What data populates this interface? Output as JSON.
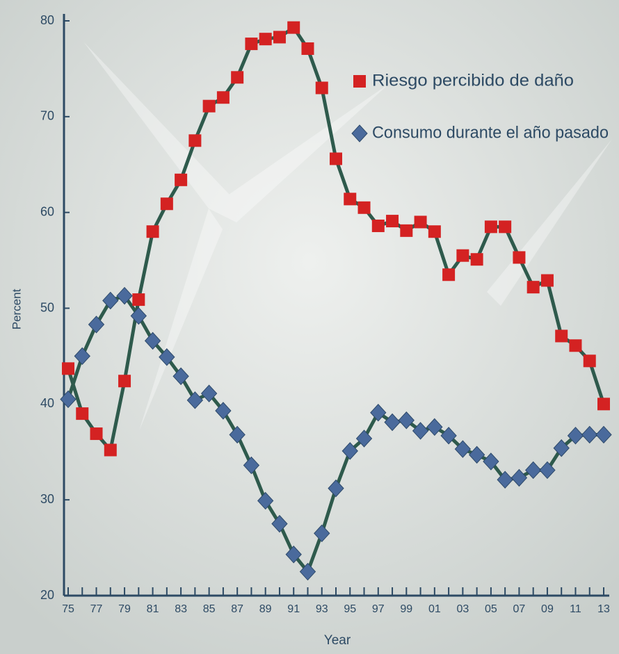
{
  "chart_data": {
    "type": "line",
    "x_label": "Year",
    "y_label": "Percent",
    "categories": [
      "75",
      null,
      "77",
      null,
      "79",
      null,
      "81",
      null,
      "83",
      null,
      "85",
      null,
      "87",
      null,
      "89",
      null,
      "91",
      null,
      "93",
      null,
      "95",
      null,
      "97",
      null,
      "99",
      null,
      "01",
      null,
      "03",
      null,
      "05",
      null,
      "07",
      null,
      "09",
      null,
      "11",
      null,
      "13"
    ],
    "series": [
      {
        "name": "Riesgo percibido de daño",
        "color": "#d42222",
        "marker": "square",
        "values": [
          43.7,
          39,
          36.9,
          35.2,
          42.4,
          50.9,
          58,
          60.9,
          63.4,
          67.5,
          71.1,
          72,
          74.1,
          77.6,
          78.1,
          78.3,
          79.3,
          77.1,
          73,
          65.6,
          61.4,
          60.5,
          58.6,
          59.1,
          58.1,
          59,
          58,
          53.5,
          55.5,
          55.1,
          58.5,
          58.5,
          55.3,
          52.2,
          52.9,
          47.1,
          46.1,
          44.5,
          40
        ]
      },
      {
        "name": "Consumo durante el año pasado",
        "color": "#4a6a9c",
        "marker": "diamond",
        "values": [
          40.5,
          45,
          48.3,
          50.8,
          51.3,
          49.2,
          46.6,
          44.9,
          42.9,
          40.4,
          41.1,
          39.3,
          36.8,
          33.6,
          29.9,
          27.5,
          24.3,
          22.5,
          26.5,
          31.2,
          35.1,
          36.4,
          39.1,
          38.1,
          38.3,
          37.2,
          37.6,
          36.7,
          35.3,
          34.7,
          34,
          32.1,
          32.3,
          33.1,
          33.1,
          35.4,
          36.7,
          36.8,
          36.8
        ]
      }
    ],
    "line_color": "#2e5a4c",
    "ylim": [
      20,
      80
    ],
    "yticks": [
      20,
      30,
      40,
      50,
      60,
      70,
      80
    ],
    "legend": "upper right"
  }
}
